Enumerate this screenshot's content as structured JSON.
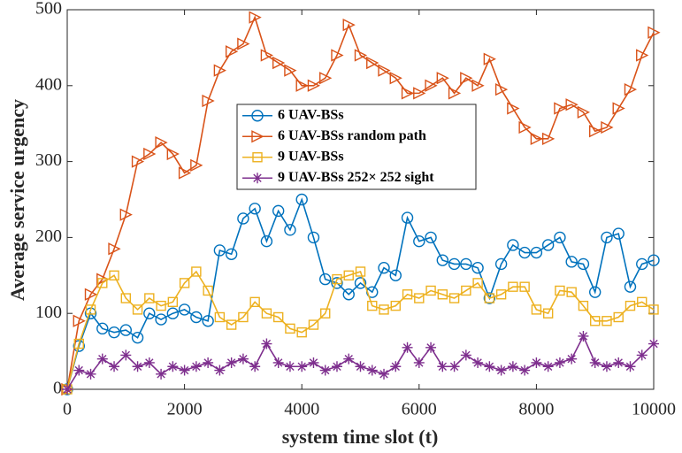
{
  "chart_data": {
    "type": "line",
    "xlabel": "system time slot (t)",
    "ylabel": "Average service urgency",
    "x": [
      0,
      200,
      400,
      600,
      800,
      1000,
      1200,
      1400,
      1600,
      1800,
      2000,
      2200,
      2400,
      2600,
      2800,
      3000,
      3200,
      3400,
      3600,
      3800,
      4000,
      4200,
      4400,
      4600,
      4800,
      5000,
      5200,
      5400,
      5600,
      5800,
      6000,
      6200,
      6400,
      6600,
      6800,
      7000,
      7200,
      7400,
      7600,
      7800,
      8000,
      8200,
      8400,
      8600,
      8800,
      9000,
      9200,
      9400,
      9600,
      9800,
      10000
    ],
    "xlim": [
      0,
      10000
    ],
    "xticks": [
      0,
      2000,
      4000,
      6000,
      8000,
      10000
    ],
    "ylim": [
      0,
      500
    ],
    "yticks": [
      0,
      100,
      200,
      300,
      400,
      500
    ],
    "legend": "top-center",
    "series": [
      {
        "name": "6 UAV-BSs",
        "color": "#0072bd",
        "marker": "circle",
        "values": [
          0,
          57,
          100,
          80,
          75,
          78,
          68,
          100,
          92,
          100,
          105,
          95,
          90,
          183,
          178,
          225,
          238,
          195,
          235,
          210,
          250,
          200,
          145,
          140,
          125,
          140,
          128,
          160,
          150,
          226,
          195,
          200,
          170,
          165,
          165,
          160,
          120,
          165,
          190,
          180,
          180,
          190,
          200,
          168,
          165,
          128,
          200,
          205,
          135,
          165,
          170
        ]
      },
      {
        "name": "6 UAV-BSs random path",
        "color": "#d95319",
        "marker": "triangle-right",
        "values": [
          0,
          90,
          125,
          145,
          185,
          230,
          300,
          310,
          325,
          310,
          285,
          295,
          380,
          420,
          445,
          455,
          490,
          440,
          430,
          420,
          400,
          400,
          410,
          440,
          480,
          440,
          430,
          420,
          410,
          390,
          390,
          400,
          410,
          390,
          410,
          400,
          435,
          395,
          370,
          345,
          330,
          330,
          370,
          375,
          365,
          340,
          345,
          370,
          395,
          440,
          470
        ]
      },
      {
        "name": "9 UAV-BSs",
        "color": "#edb120",
        "marker": "square",
        "values": [
          0,
          60,
          105,
          140,
          150,
          120,
          105,
          120,
          110,
          115,
          140,
          155,
          130,
          95,
          85,
          95,
          115,
          100,
          95,
          80,
          75,
          85,
          100,
          145,
          150,
          155,
          110,
          105,
          110,
          125,
          120,
          130,
          125,
          120,
          130,
          140,
          120,
          125,
          135,
          135,
          105,
          100,
          130,
          128,
          110,
          90,
          90,
          95,
          110,
          115,
          105
        ]
      },
      {
        "name": "9 UAV-BSs 252× 252 sight",
        "color": "#7e2f8e",
        "marker": "asterisk",
        "values": [
          0,
          25,
          20,
          40,
          30,
          45,
          30,
          35,
          20,
          30,
          25,
          30,
          35,
          25,
          35,
          40,
          30,
          60,
          35,
          30,
          30,
          35,
          25,
          30,
          40,
          30,
          25,
          20,
          30,
          55,
          35,
          55,
          30,
          30,
          45,
          35,
          30,
          25,
          30,
          25,
          35,
          30,
          35,
          40,
          70,
          35,
          30,
          35,
          30,
          45,
          60
        ]
      }
    ]
  }
}
